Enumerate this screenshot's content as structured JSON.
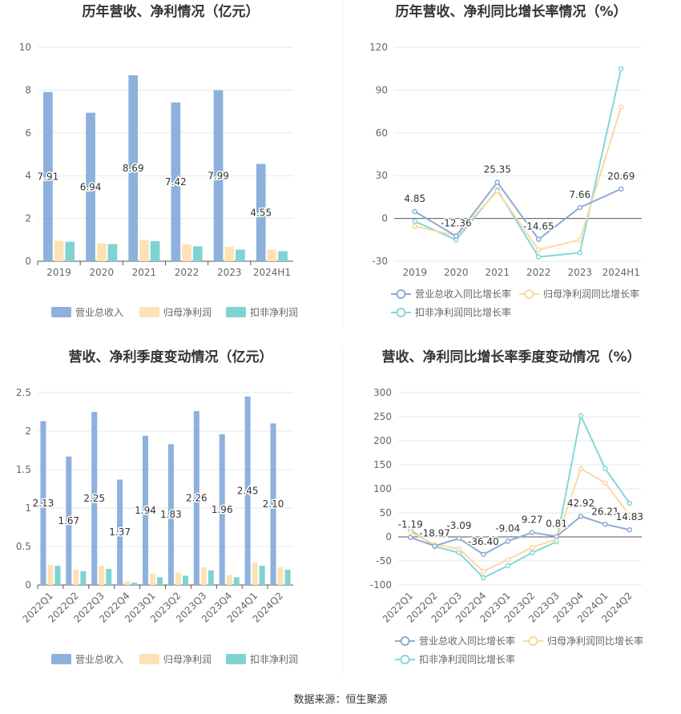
{
  "source": "数据来源：恒生聚源",
  "colors": {
    "revenue": "#8eb0dc",
    "parent_profit": "#fde2b5",
    "deducted_profit": "#7fd3d3",
    "revenue_line": "#8eaad6",
    "parent_line": "#fbd9a0",
    "deducted_line": "#86d6d6",
    "grid": "#e4e7ee",
    "axis_text": "#666666",
    "title": "#333333"
  },
  "chart_data": [
    {
      "id": "annual-bar",
      "type": "bar",
      "title": "历年营收、净利情况（亿元）",
      "categories": [
        "2019",
        "2020",
        "2021",
        "2022",
        "2023",
        "2024H1"
      ],
      "ylim": [
        0,
        10
      ],
      "yticks": [
        0,
        2,
        4,
        6,
        8,
        10
      ],
      "grid": true,
      "legend": "bottom",
      "series": [
        {
          "name": "营业总收入",
          "values": [
            7.91,
            6.94,
            8.69,
            7.42,
            7.99,
            4.55
          ],
          "labels": [
            "7.91",
            "6.94",
            "8.69",
            "7.42",
            "7.99",
            "4.55"
          ]
        },
        {
          "name": "归母净利润",
          "values": [
            0.95,
            0.84,
            0.99,
            0.79,
            0.67,
            0.54
          ]
        },
        {
          "name": "扣非净利润",
          "values": [
            0.91,
            0.8,
            0.94,
            0.7,
            0.54,
            0.47
          ]
        }
      ]
    },
    {
      "id": "annual-line",
      "type": "line",
      "title": "历年营收、净利同比增长率情况（%）",
      "categories": [
        "2019",
        "2020",
        "2021",
        "2022",
        "2023",
        "2024H1"
      ],
      "ylim": [
        -30,
        120
      ],
      "yticks": [
        -30,
        0,
        30,
        60,
        90,
        120
      ],
      "grid": true,
      "legend": "bottom",
      "series": [
        {
          "name": "营业总收入同比增长率",
          "values": [
            4.85,
            -12.36,
            25.35,
            -14.65,
            7.66,
            20.69
          ],
          "labels": [
            "4.85",
            "-12.36",
            "25.35",
            "-14.65",
            "7.66",
            "20.69"
          ]
        },
        {
          "name": "归母净利润同比增长率",
          "values": [
            -5.5,
            -12.0,
            19.0,
            -22.0,
            -15.0,
            78.0
          ]
        },
        {
          "name": "扣非净利润同比增长率",
          "values": [
            -2.0,
            -15.0,
            20.0,
            -27.0,
            -24.0,
            105.0
          ]
        }
      ]
    },
    {
      "id": "quarter-bar",
      "type": "bar",
      "title": "营收、净利季度变动情况（亿元）",
      "categories": [
        "2022Q1",
        "2022Q2",
        "2022Q3",
        "2022Q4",
        "2023Q1",
        "2023Q2",
        "2023Q3",
        "2023Q4",
        "2024Q1",
        "2024Q2"
      ],
      "ylim": [
        0,
        2.5
      ],
      "yticks": [
        "0",
        "0.5",
        "1",
        "1.5",
        "2",
        "2.5"
      ],
      "grid": true,
      "legend": "bottom",
      "series": [
        {
          "name": "营业总收入",
          "values": [
            2.13,
            1.67,
            2.25,
            1.37,
            1.94,
            1.83,
            2.26,
            1.96,
            2.45,
            2.1
          ],
          "labels": [
            "2.13",
            "1.67",
            "2.25",
            "1.37",
            "1.94",
            "1.83",
            "2.26",
            "1.96",
            "2.45",
            "2.10"
          ]
        },
        {
          "name": "归母净利润",
          "values": [
            0.26,
            0.2,
            0.25,
            0.05,
            0.15,
            0.16,
            0.23,
            0.13,
            0.29,
            0.23
          ]
        },
        {
          "name": "扣非净利润",
          "values": [
            0.25,
            0.18,
            0.21,
            0.03,
            0.1,
            0.12,
            0.19,
            0.1,
            0.25,
            0.2
          ]
        }
      ]
    },
    {
      "id": "quarter-line",
      "type": "line",
      "title": "营收、净利同比增长率季度变动情况（%）",
      "categories": [
        "2022Q1",
        "2022Q2",
        "2022Q3",
        "2022Q4",
        "2023Q1",
        "2023Q2",
        "2023Q3",
        "2023Q4",
        "2024Q1",
        "2024Q2"
      ],
      "ylim": [
        -100,
        300
      ],
      "yticks": [
        -100,
        -50,
        0,
        50,
        100,
        150,
        200,
        250,
        300
      ],
      "grid": true,
      "legend": "bottom",
      "series": [
        {
          "name": "营业总收入同比增长率",
          "values": [
            -1.19,
            -18.97,
            -3.09,
            -36.4,
            -9.04,
            9.27,
            0.81,
            42.92,
            26.21,
            14.83
          ],
          "labels": [
            "-1.19",
            "-18.97",
            "-3.09",
            "-36.40",
            "-9.04",
            "9.27",
            "0.81",
            "42.92",
            "26.21",
            "14.83"
          ]
        },
        {
          "name": "归母净利润同比增长率",
          "values": [
            10.0,
            -16.0,
            -25.0,
            -72.0,
            -47.0,
            -22.0,
            -5.0,
            142.0,
            112.0,
            45.0
          ]
        },
        {
          "name": "扣非净利润同比增长率",
          "values": [
            15.0,
            -20.0,
            -33.0,
            -85.0,
            -60.0,
            -33.0,
            -10.0,
            252.0,
            142.0,
            70.0
          ]
        }
      ]
    }
  ]
}
